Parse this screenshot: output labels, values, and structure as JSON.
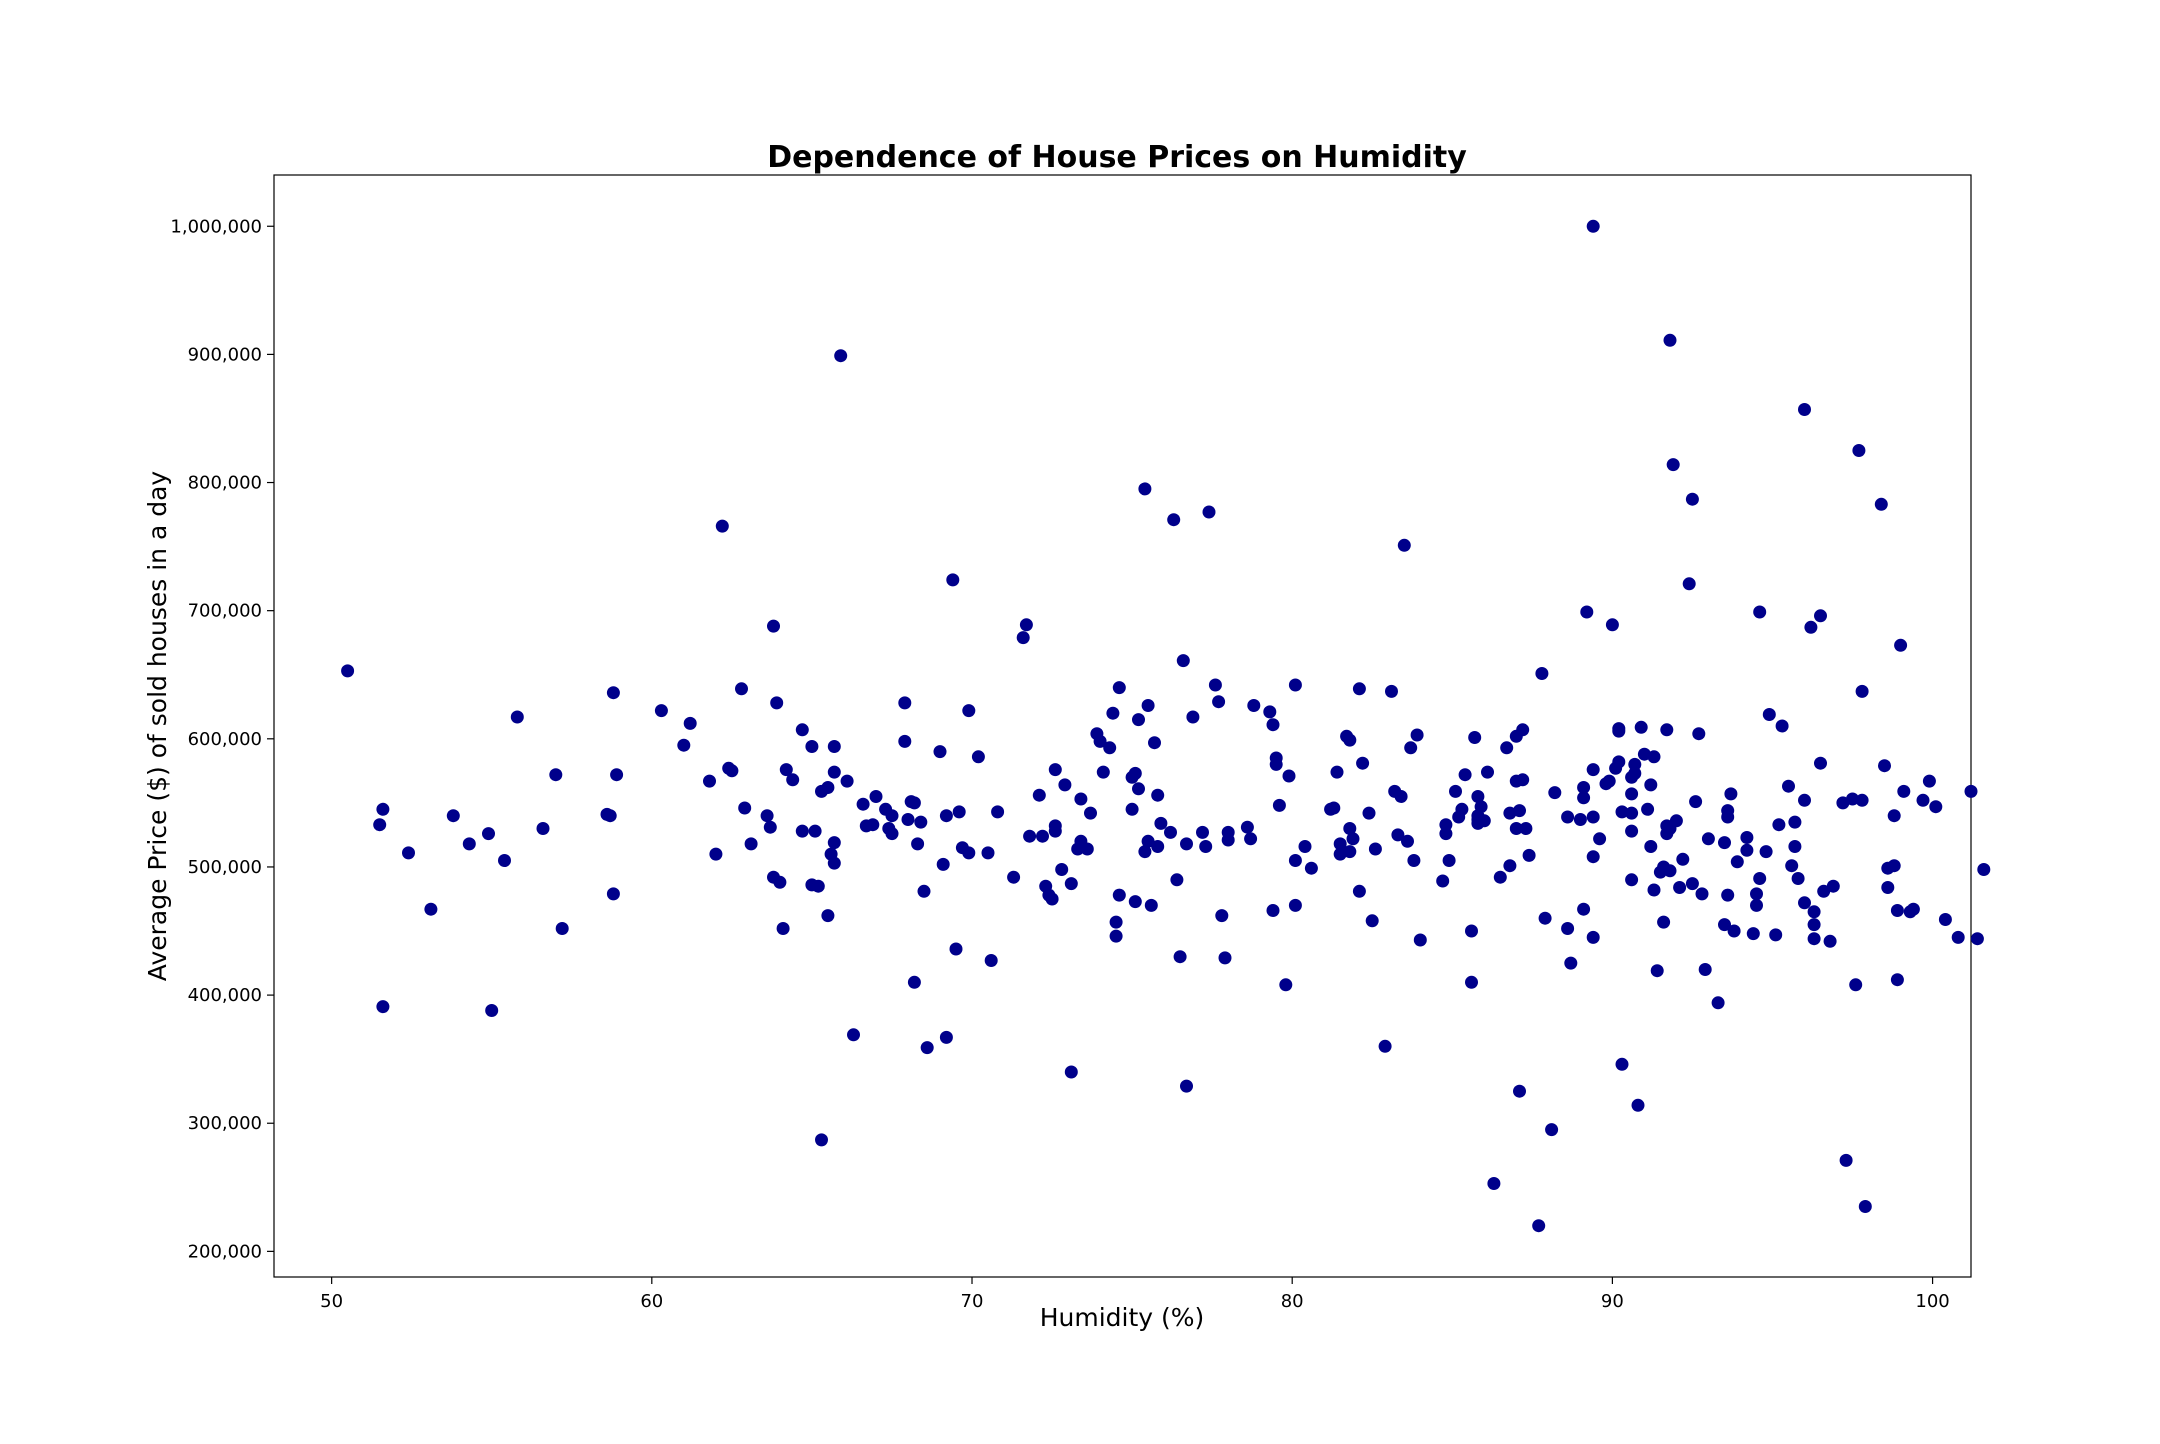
{
  "chart_data": {
    "type": "scatter",
    "title": "Dependence of House Prices on Humidity",
    "xlabel": "Humidity (%)",
    "ylabel": "Average Price ($) of sold houses in a day",
    "xlim": [
      48.2,
      101.2
    ],
    "ylim": [
      180000,
      1040000
    ],
    "x_ticks": [
      50,
      60,
      70,
      80,
      90,
      100
    ],
    "x_tick_labels": [
      "50",
      "60",
      "70",
      "80",
      "90",
      "100"
    ],
    "y_ticks": [
      200000,
      300000,
      400000,
      500000,
      600000,
      700000,
      800000,
      900000,
      1000000
    ],
    "y_tick_labels": [
      "200,000",
      "300,000",
      "400,000",
      "500,000",
      "600,000",
      "700,000",
      "800,000",
      "900,000",
      "1,000,000"
    ],
    "grid": false,
    "marker_color": "#00008b",
    "points": [
      [
        50.5,
        653000
      ],
      [
        51.5,
        533000
      ],
      [
        51.6,
        545000
      ],
      [
        51.6,
        391000
      ],
      [
        52.4,
        511000
      ],
      [
        53.1,
        467000
      ],
      [
        53.8,
        540000
      ],
      [
        54.3,
        518000
      ],
      [
        54.9,
        526000
      ],
      [
        55.0,
        388000
      ],
      [
        55.4,
        505000
      ],
      [
        55.8,
        617000
      ],
      [
        56.6,
        530000
      ],
      [
        57.0,
        572000
      ],
      [
        57.2,
        452000
      ],
      [
        58.6,
        541000
      ],
      [
        58.7,
        540000
      ],
      [
        58.8,
        636000
      ],
      [
        58.8,
        479000
      ],
      [
        58.9,
        572000
      ],
      [
        60.3,
        622000
      ],
      [
        61.0,
        595000
      ],
      [
        61.2,
        612000
      ],
      [
        61.8,
        567000
      ],
      [
        62.0,
        510000
      ],
      [
        62.2,
        766000
      ],
      [
        62.4,
        577000
      ],
      [
        62.5,
        575000
      ],
      [
        62.8,
        639000
      ],
      [
        62.9,
        546000
      ],
      [
        63.1,
        518000
      ],
      [
        63.6,
        540000
      ],
      [
        63.7,
        531000
      ],
      [
        63.8,
        688000
      ],
      [
        63.8,
        492000
      ],
      [
        63.9,
        628000
      ],
      [
        64.0,
        488000
      ],
      [
        64.1,
        452000
      ],
      [
        64.2,
        576000
      ],
      [
        64.4,
        568000
      ],
      [
        64.7,
        528000
      ],
      [
        64.7,
        607000
      ],
      [
        65.0,
        594000
      ],
      [
        65.0,
        486000
      ],
      [
        65.1,
        528000
      ],
      [
        65.2,
        485000
      ],
      [
        65.3,
        559000
      ],
      [
        65.3,
        287000
      ],
      [
        65.5,
        562000
      ],
      [
        65.5,
        462000
      ],
      [
        65.6,
        510000
      ],
      [
        65.7,
        503000
      ],
      [
        65.7,
        519000
      ],
      [
        65.7,
        574000
      ],
      [
        65.7,
        594000
      ],
      [
        65.9,
        899000
      ],
      [
        66.1,
        567000
      ],
      [
        66.3,
        369000
      ],
      [
        66.6,
        549000
      ],
      [
        66.7,
        532000
      ],
      [
        66.9,
        533000
      ],
      [
        67.0,
        555000
      ],
      [
        67.3,
        545000
      ],
      [
        67.4,
        530000
      ],
      [
        67.5,
        540000
      ],
      [
        67.5,
        526000
      ],
      [
        67.9,
        628000
      ],
      [
        67.9,
        598000
      ],
      [
        68.0,
        537000
      ],
      [
        68.1,
        551000
      ],
      [
        68.2,
        410000
      ],
      [
        68.2,
        550000
      ],
      [
        68.3,
        518000
      ],
      [
        68.4,
        535000
      ],
      [
        68.5,
        481000
      ],
      [
        68.6,
        359000
      ],
      [
        69.0,
        590000
      ],
      [
        69.1,
        502000
      ],
      [
        69.2,
        540000
      ],
      [
        69.2,
        367000
      ],
      [
        69.4,
        724000
      ],
      [
        69.5,
        436000
      ],
      [
        69.6,
        543000
      ],
      [
        69.7,
        515000
      ],
      [
        69.9,
        622000
      ],
      [
        69.9,
        511000
      ],
      [
        70.2,
        586000
      ],
      [
        70.5,
        511000
      ],
      [
        70.6,
        427000
      ],
      [
        70.8,
        543000
      ],
      [
        71.3,
        492000
      ],
      [
        71.6,
        679000
      ],
      [
        71.7,
        689000
      ],
      [
        71.8,
        524000
      ],
      [
        72.1,
        556000
      ],
      [
        72.2,
        524000
      ],
      [
        72.3,
        485000
      ],
      [
        72.4,
        478000
      ],
      [
        72.5,
        475000
      ],
      [
        72.6,
        576000
      ],
      [
        72.6,
        532000
      ],
      [
        72.6,
        528000
      ],
      [
        72.8,
        498000
      ],
      [
        72.9,
        564000
      ],
      [
        73.1,
        487000
      ],
      [
        73.1,
        340000
      ],
      [
        73.3,
        514000
      ],
      [
        73.4,
        553000
      ],
      [
        73.4,
        520000
      ],
      [
        73.6,
        514000
      ],
      [
        73.7,
        542000
      ],
      [
        73.9,
        604000
      ],
      [
        74.0,
        598000
      ],
      [
        74.1,
        574000
      ],
      [
        74.3,
        593000
      ],
      [
        74.4,
        620000
      ],
      [
        74.5,
        457000
      ],
      [
        74.5,
        446000
      ],
      [
        74.6,
        478000
      ],
      [
        74.6,
        640000
      ],
      [
        75.0,
        545000
      ],
      [
        75.0,
        570000
      ],
      [
        75.1,
        473000
      ],
      [
        75.1,
        573000
      ],
      [
        75.2,
        615000
      ],
      [
        75.2,
        561000
      ],
      [
        75.4,
        512000
      ],
      [
        75.4,
        795000
      ],
      [
        75.5,
        520000
      ],
      [
        75.5,
        626000
      ],
      [
        75.6,
        470000
      ],
      [
        75.7,
        597000
      ],
      [
        75.8,
        516000
      ],
      [
        75.8,
        556000
      ],
      [
        75.9,
        534000
      ],
      [
        76.2,
        527000
      ],
      [
        76.3,
        771000
      ],
      [
        76.4,
        490000
      ],
      [
        76.5,
        430000
      ],
      [
        76.6,
        661000
      ],
      [
        76.7,
        518000
      ],
      [
        76.7,
        329000
      ],
      [
        76.9,
        617000
      ],
      [
        77.2,
        527000
      ],
      [
        77.3,
        516000
      ],
      [
        77.4,
        777000
      ],
      [
        77.6,
        642000
      ],
      [
        77.7,
        629000
      ],
      [
        77.8,
        462000
      ],
      [
        77.9,
        429000
      ],
      [
        78.0,
        527000
      ],
      [
        78.0,
        521000
      ],
      [
        78.6,
        531000
      ],
      [
        78.7,
        522000
      ],
      [
        78.8,
        626000
      ],
      [
        79.3,
        621000
      ],
      [
        79.4,
        466000
      ],
      [
        79.4,
        611000
      ],
      [
        79.5,
        585000
      ],
      [
        79.5,
        580000
      ],
      [
        79.6,
        548000
      ],
      [
        79.8,
        408000
      ],
      [
        79.9,
        571000
      ],
      [
        80.1,
        642000
      ],
      [
        80.1,
        505000
      ],
      [
        80.1,
        470000
      ],
      [
        80.4,
        516000
      ],
      [
        80.6,
        499000
      ],
      [
        81.2,
        545000
      ],
      [
        81.3,
        546000
      ],
      [
        81.4,
        574000
      ],
      [
        81.5,
        518000
      ],
      [
        81.5,
        510000
      ],
      [
        81.7,
        602000
      ],
      [
        81.8,
        512000
      ],
      [
        81.8,
        530000
      ],
      [
        81.8,
        599000
      ],
      [
        81.9,
        522000
      ],
      [
        82.1,
        639000
      ],
      [
        82.1,
        481000
      ],
      [
        82.2,
        581000
      ],
      [
        82.4,
        542000
      ],
      [
        82.5,
        458000
      ],
      [
        82.6,
        514000
      ],
      [
        82.9,
        360000
      ],
      [
        83.1,
        637000
      ],
      [
        83.2,
        559000
      ],
      [
        83.3,
        525000
      ],
      [
        83.4,
        555000
      ],
      [
        83.5,
        751000
      ],
      [
        83.6,
        520000
      ],
      [
        83.7,
        593000
      ],
      [
        83.8,
        505000
      ],
      [
        83.9,
        603000
      ],
      [
        84.0,
        443000
      ],
      [
        84.7,
        489000
      ],
      [
        84.8,
        533000
      ],
      [
        84.8,
        526000
      ],
      [
        84.9,
        505000
      ],
      [
        85.1,
        559000
      ],
      [
        85.2,
        539000
      ],
      [
        85.3,
        545000
      ],
      [
        85.4,
        572000
      ],
      [
        85.6,
        410000
      ],
      [
        85.6,
        450000
      ],
      [
        85.7,
        601000
      ],
      [
        85.8,
        534000
      ],
      [
        85.8,
        555000
      ],
      [
        85.8,
        537000
      ],
      [
        85.8,
        540000
      ],
      [
        85.9,
        547000
      ],
      [
        86.0,
        536000
      ],
      [
        86.1,
        574000
      ],
      [
        86.3,
        253000
      ],
      [
        86.5,
        492000
      ],
      [
        86.7,
        593000
      ],
      [
        86.8,
        542000
      ],
      [
        86.8,
        501000
      ],
      [
        87.0,
        567000
      ],
      [
        87.0,
        530000
      ],
      [
        87.0,
        602000
      ],
      [
        87.1,
        325000
      ],
      [
        87.1,
        544000
      ],
      [
        87.2,
        607000
      ],
      [
        87.2,
        568000
      ],
      [
        87.3,
        530000
      ],
      [
        87.4,
        509000
      ],
      [
        87.7,
        220000
      ],
      [
        87.8,
        651000
      ],
      [
        87.9,
        460000
      ],
      [
        88.1,
        295000
      ],
      [
        88.2,
        558000
      ],
      [
        88.6,
        539000
      ],
      [
        88.6,
        452000
      ],
      [
        88.7,
        425000
      ],
      [
        89.0,
        537000
      ],
      [
        89.1,
        467000
      ],
      [
        89.1,
        562000
      ],
      [
        89.1,
        554000
      ],
      [
        89.2,
        699000
      ],
      [
        89.4,
        1000000
      ],
      [
        89.4,
        508000
      ],
      [
        89.4,
        576000
      ],
      [
        89.4,
        539000
      ],
      [
        89.4,
        445000
      ],
      [
        89.6,
        522000
      ],
      [
        89.8,
        565000
      ],
      [
        89.9,
        567000
      ],
      [
        90.0,
        689000
      ],
      [
        90.1,
        577000
      ],
      [
        90.2,
        582000
      ],
      [
        90.2,
        606000
      ],
      [
        90.2,
        608000
      ],
      [
        90.3,
        543000
      ],
      [
        90.3,
        346000
      ],
      [
        90.6,
        542000
      ],
      [
        90.6,
        557000
      ],
      [
        90.6,
        528000
      ],
      [
        90.6,
        490000
      ],
      [
        90.6,
        570000
      ],
      [
        90.7,
        573000
      ],
      [
        90.7,
        580000
      ],
      [
        90.8,
        314000
      ],
      [
        90.9,
        609000
      ],
      [
        91.0,
        588000
      ],
      [
        91.1,
        545000
      ],
      [
        91.2,
        564000
      ],
      [
        91.2,
        516000
      ],
      [
        91.3,
        586000
      ],
      [
        91.3,
        482000
      ],
      [
        91.4,
        419000
      ],
      [
        91.5,
        496000
      ],
      [
        91.6,
        500000
      ],
      [
        91.6,
        457000
      ],
      [
        91.7,
        526000
      ],
      [
        91.7,
        532000
      ],
      [
        91.7,
        607000
      ],
      [
        91.8,
        497000
      ],
      [
        91.8,
        911000
      ],
      [
        91.8,
        530000
      ],
      [
        91.9,
        814000
      ],
      [
        92.0,
        536000
      ],
      [
        92.1,
        484000
      ],
      [
        92.2,
        506000
      ],
      [
        92.4,
        721000
      ],
      [
        92.5,
        487000
      ],
      [
        92.5,
        787000
      ],
      [
        92.6,
        551000
      ],
      [
        92.7,
        604000
      ],
      [
        92.8,
        479000
      ],
      [
        92.9,
        420000
      ],
      [
        93.0,
        522000
      ],
      [
        93.3,
        394000
      ],
      [
        93.5,
        519000
      ],
      [
        93.5,
        455000
      ],
      [
        93.6,
        544000
      ],
      [
        93.6,
        539000
      ],
      [
        93.6,
        478000
      ],
      [
        93.7,
        557000
      ],
      [
        93.8,
        450000
      ],
      [
        93.9,
        504000
      ],
      [
        94.2,
        513000
      ],
      [
        94.2,
        523000
      ],
      [
        94.4,
        448000
      ],
      [
        94.5,
        479000
      ],
      [
        94.5,
        470000
      ],
      [
        94.6,
        491000
      ],
      [
        94.6,
        699000
      ],
      [
        94.8,
        512000
      ],
      [
        94.9,
        619000
      ],
      [
        95.1,
        447000
      ],
      [
        95.2,
        533000
      ],
      [
        95.3,
        610000
      ],
      [
        95.5,
        563000
      ],
      [
        95.6,
        501000
      ],
      [
        95.7,
        516000
      ],
      [
        95.7,
        535000
      ],
      [
        95.8,
        491000
      ],
      [
        96.0,
        857000
      ],
      [
        96.0,
        472000
      ],
      [
        96.0,
        552000
      ],
      [
        96.2,
        687000
      ],
      [
        96.3,
        455000
      ],
      [
        96.3,
        465000
      ],
      [
        96.3,
        444000
      ],
      [
        96.5,
        696000
      ],
      [
        96.5,
        581000
      ],
      [
        96.6,
        481000
      ],
      [
        96.8,
        442000
      ],
      [
        96.9,
        485000
      ],
      [
        97.2,
        550000
      ],
      [
        97.3,
        271000
      ],
      [
        97.5,
        553000
      ],
      [
        97.6,
        408000
      ],
      [
        97.7,
        825000
      ],
      [
        97.8,
        552000
      ],
      [
        97.8,
        637000
      ],
      [
        97.9,
        235000
      ],
      [
        98.4,
        783000
      ],
      [
        98.5,
        579000
      ],
      [
        98.6,
        484000
      ],
      [
        98.6,
        499000
      ],
      [
        98.8,
        501000
      ],
      [
        98.8,
        540000
      ],
      [
        98.9,
        466000
      ],
      [
        98.9,
        412000
      ],
      [
        99.0,
        673000
      ],
      [
        99.1,
        559000
      ],
      [
        99.3,
        465000
      ],
      [
        99.4,
        467000
      ],
      [
        99.7,
        552000
      ],
      [
        99.9,
        567000
      ],
      [
        100.1,
        547000
      ],
      [
        100.4,
        459000
      ],
      [
        100.8,
        445000
      ],
      [
        101.2,
        559000
      ],
      [
        101.4,
        444000
      ],
      [
        101.6,
        498000
      ]
    ]
  }
}
